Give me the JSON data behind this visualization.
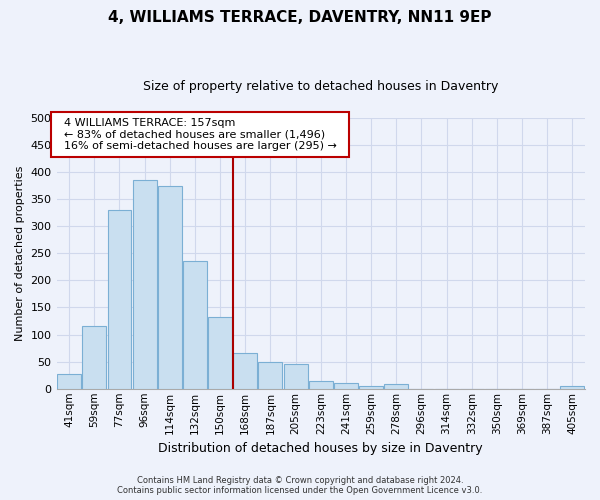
{
  "title": "4, WILLIAMS TERRACE, DAVENTRY, NN11 9EP",
  "subtitle": "Size of property relative to detached houses in Daventry",
  "xlabel": "Distribution of detached houses by size in Daventry",
  "ylabel": "Number of detached properties",
  "bar_labels": [
    "41sqm",
    "59sqm",
    "77sqm",
    "96sqm",
    "114sqm",
    "132sqm",
    "150sqm",
    "168sqm",
    "187sqm",
    "205sqm",
    "223sqm",
    "241sqm",
    "259sqm",
    "278sqm",
    "296sqm",
    "314sqm",
    "332sqm",
    "350sqm",
    "369sqm",
    "387sqm",
    "405sqm"
  ],
  "bar_values": [
    27,
    116,
    330,
    385,
    375,
    236,
    133,
    66,
    50,
    45,
    15,
    10,
    6,
    9,
    0,
    0,
    0,
    0,
    0,
    0,
    5
  ],
  "bar_color": "#c9dff0",
  "bar_edge_color": "#7bafd4",
  "vline_index": 6.5,
  "vline_color": "#aa0000",
  "annotation_title": "4 WILLIAMS TERRACE: 157sqm",
  "annotation_line1": "← 83% of detached houses are smaller (1,496)",
  "annotation_line2": "16% of semi-detached houses are larger (295) →",
  "annotation_box_facecolor": "#ffffff",
  "annotation_box_edgecolor": "#bb0000",
  "ylim": [
    0,
    500
  ],
  "yticks": [
    0,
    50,
    100,
    150,
    200,
    250,
    300,
    350,
    400,
    450,
    500
  ],
  "footer1": "Contains HM Land Registry data © Crown copyright and database right 2024.",
  "footer2": "Contains public sector information licensed under the Open Government Licence v3.0.",
  "background_color": "#eef2fb",
  "grid_color": "#d0d8ec",
  "title_fontsize": 11,
  "subtitle_fontsize": 9
}
